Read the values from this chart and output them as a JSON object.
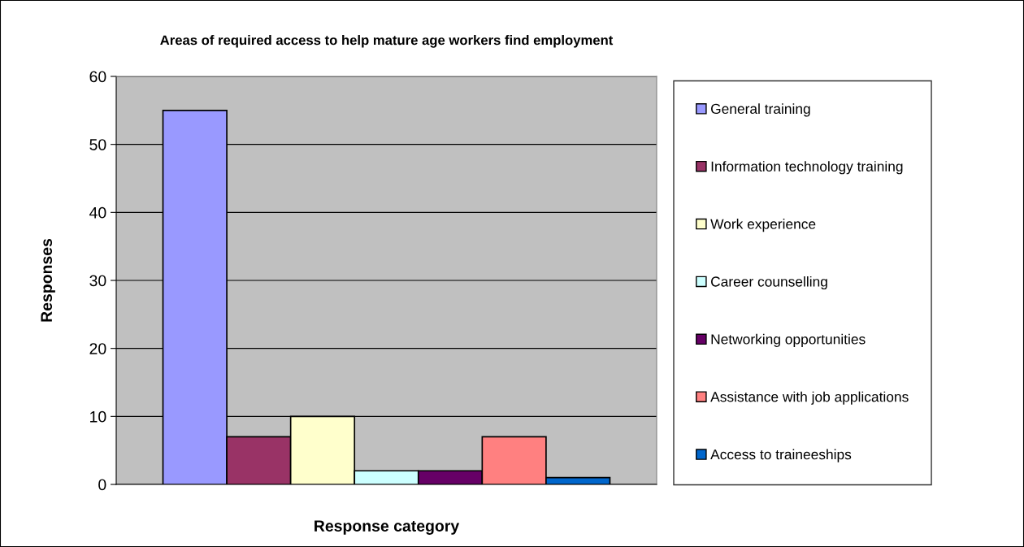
{
  "chart_data": {
    "type": "bar",
    "title": "Areas of required access to help mature age workers find employment",
    "xlabel": "Response category",
    "ylabel": "Responses",
    "categories": [
      null
    ],
    "series": [
      {
        "name": "General training",
        "color": "#9999ff",
        "values": [
          55
        ]
      },
      {
        "name": "Information technology training",
        "color": "#993366",
        "values": [
          7
        ]
      },
      {
        "name": "Work experience",
        "color": "#ffffcc",
        "values": [
          10
        ]
      },
      {
        "name": "Career counselling",
        "color": "#ccffff",
        "values": [
          2
        ]
      },
      {
        "name": "Networking opportunities",
        "color": "#660066",
        "values": [
          2
        ]
      },
      {
        "name": "Assistance with job applications",
        "color": "#ff8080",
        "values": [
          7
        ]
      },
      {
        "name": "Access to traineeships",
        "color": "#0066cc",
        "values": [
          1
        ]
      }
    ],
    "ylim": [
      0,
      60
    ],
    "yticks": [
      0,
      10,
      20,
      30,
      40,
      50,
      60
    ],
    "grid": "y",
    "legend": "right"
  }
}
